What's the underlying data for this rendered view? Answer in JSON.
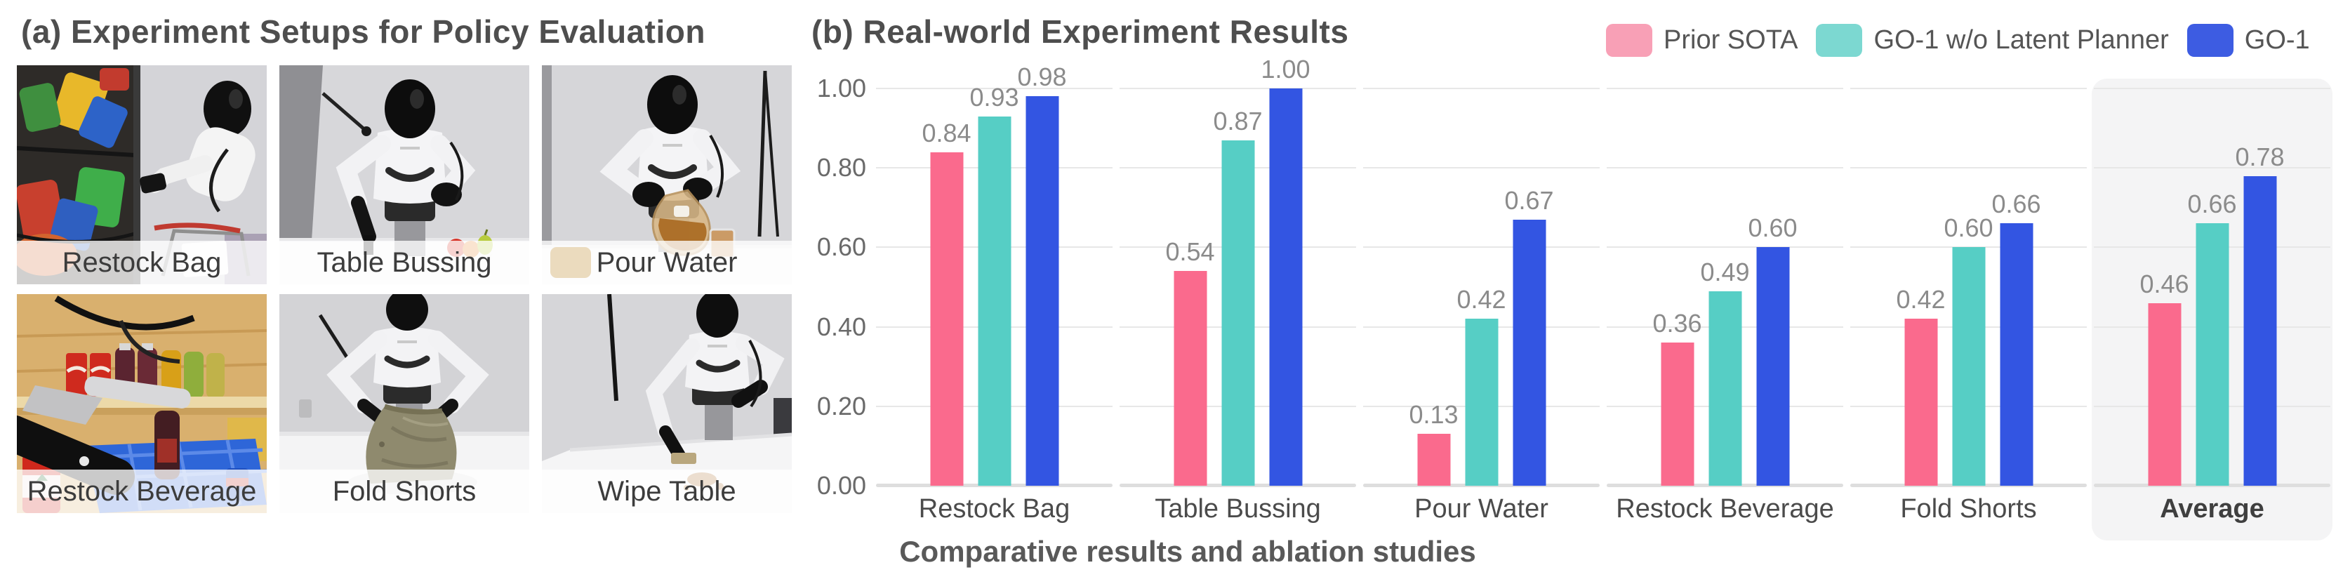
{
  "panel_a": {
    "title": "(a) Experiment Setups for Policy Evaluation",
    "tiles": [
      {
        "label": "Restock Bag"
      },
      {
        "label": "Table Bussing"
      },
      {
        "label": "Pour Water"
      },
      {
        "label": "Restock Beverage"
      },
      {
        "label": "Fold Shorts"
      },
      {
        "label": "Wipe Table"
      }
    ]
  },
  "panel_b": {
    "title": "(b) Real-world Experiment Results",
    "caption": "Comparative results and ablation studies"
  },
  "chart_data": {
    "type": "bar",
    "title": "(b) Real-world Experiment Results",
    "categories": [
      "Restock Bag",
      "Table Bussing",
      "Pour Water",
      "Restock Beverage",
      "Fold Shorts",
      "Average"
    ],
    "series": [
      {
        "name": "Prior SOTA",
        "color": "#FA6A8D",
        "legend_color": "#F8A0B6",
        "values": [
          0.84,
          0.54,
          0.13,
          0.36,
          0.42,
          0.46
        ]
      },
      {
        "name": "GO-1 w/o Latent Planner",
        "color": "#56CEC5",
        "legend_color": "#7CD8D1",
        "values": [
          0.93,
          0.87,
          0.42,
          0.49,
          0.6,
          0.66
        ]
      },
      {
        "name": "GO-1",
        "color": "#3355E2",
        "legend_color": "#3D5CE2",
        "values": [
          0.98,
          1.0,
          0.67,
          0.6,
          0.66,
          0.78
        ]
      }
    ],
    "ylabel": "",
    "xlabel": "",
    "ylim": [
      0.0,
      1.0
    ],
    "yticks": [
      "0.00",
      "0.20",
      "0.40",
      "0.60",
      "0.80",
      "1.00"
    ],
    "grid": true,
    "value_labels": true,
    "legend_position": "top-right",
    "highlight_category": "Average",
    "highlight_color": "#f4f4f5"
  }
}
